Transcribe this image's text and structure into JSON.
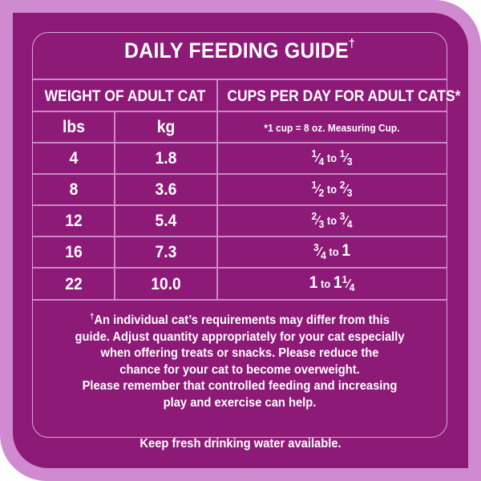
{
  "title": "DAILY FEEDING GUIDE",
  "title_mark": "†",
  "header": {
    "weight": "WEIGHT OF ADULT CAT",
    "cups": "CUPS PER DAY FOR ADULT CATS*",
    "lbs": "lbs",
    "kg": "kg",
    "cup_note": "*1 cup = 8 oz. Measuring Cup."
  },
  "rows": [
    {
      "lbs": "4",
      "kg": "1.8",
      "from": {
        "num": "1",
        "den": "4"
      },
      "to_word": "to",
      "to": {
        "num": "1",
        "den": "3"
      }
    },
    {
      "lbs": "8",
      "kg": "3.6",
      "from": {
        "num": "1",
        "den": "2"
      },
      "to_word": "to",
      "to": {
        "num": "2",
        "den": "3"
      }
    },
    {
      "lbs": "12",
      "kg": "5.4",
      "from": {
        "num": "2",
        "den": "3"
      },
      "to_word": "to",
      "to": {
        "num": "3",
        "den": "4"
      }
    },
    {
      "lbs": "16",
      "kg": "7.3",
      "from": {
        "num": "3",
        "den": "4"
      },
      "to_word": "to",
      "to_whole": "1"
    },
    {
      "lbs": "22",
      "kg": "10.0",
      "from_whole": "1",
      "to_word": "to",
      "to_whole": "1",
      "to": {
        "num": "1",
        "den": "4"
      }
    }
  ],
  "footnote_mark": "†",
  "footnote_lines": [
    "An individual cat’s requirements may differ from this",
    "guide. Adjust quantity appropriately for your cat especially",
    "when offering treats or snacks. Please reduce the",
    "chance for your cat to become overweight.",
    "Please remember that controlled feeding and increasing",
    "play and exercise can help."
  ],
  "water_note": "Keep fresh drinking water available.",
  "colors": {
    "panel": "#8e1a78",
    "border": "#d08ad0",
    "text": "#ffffff"
  }
}
